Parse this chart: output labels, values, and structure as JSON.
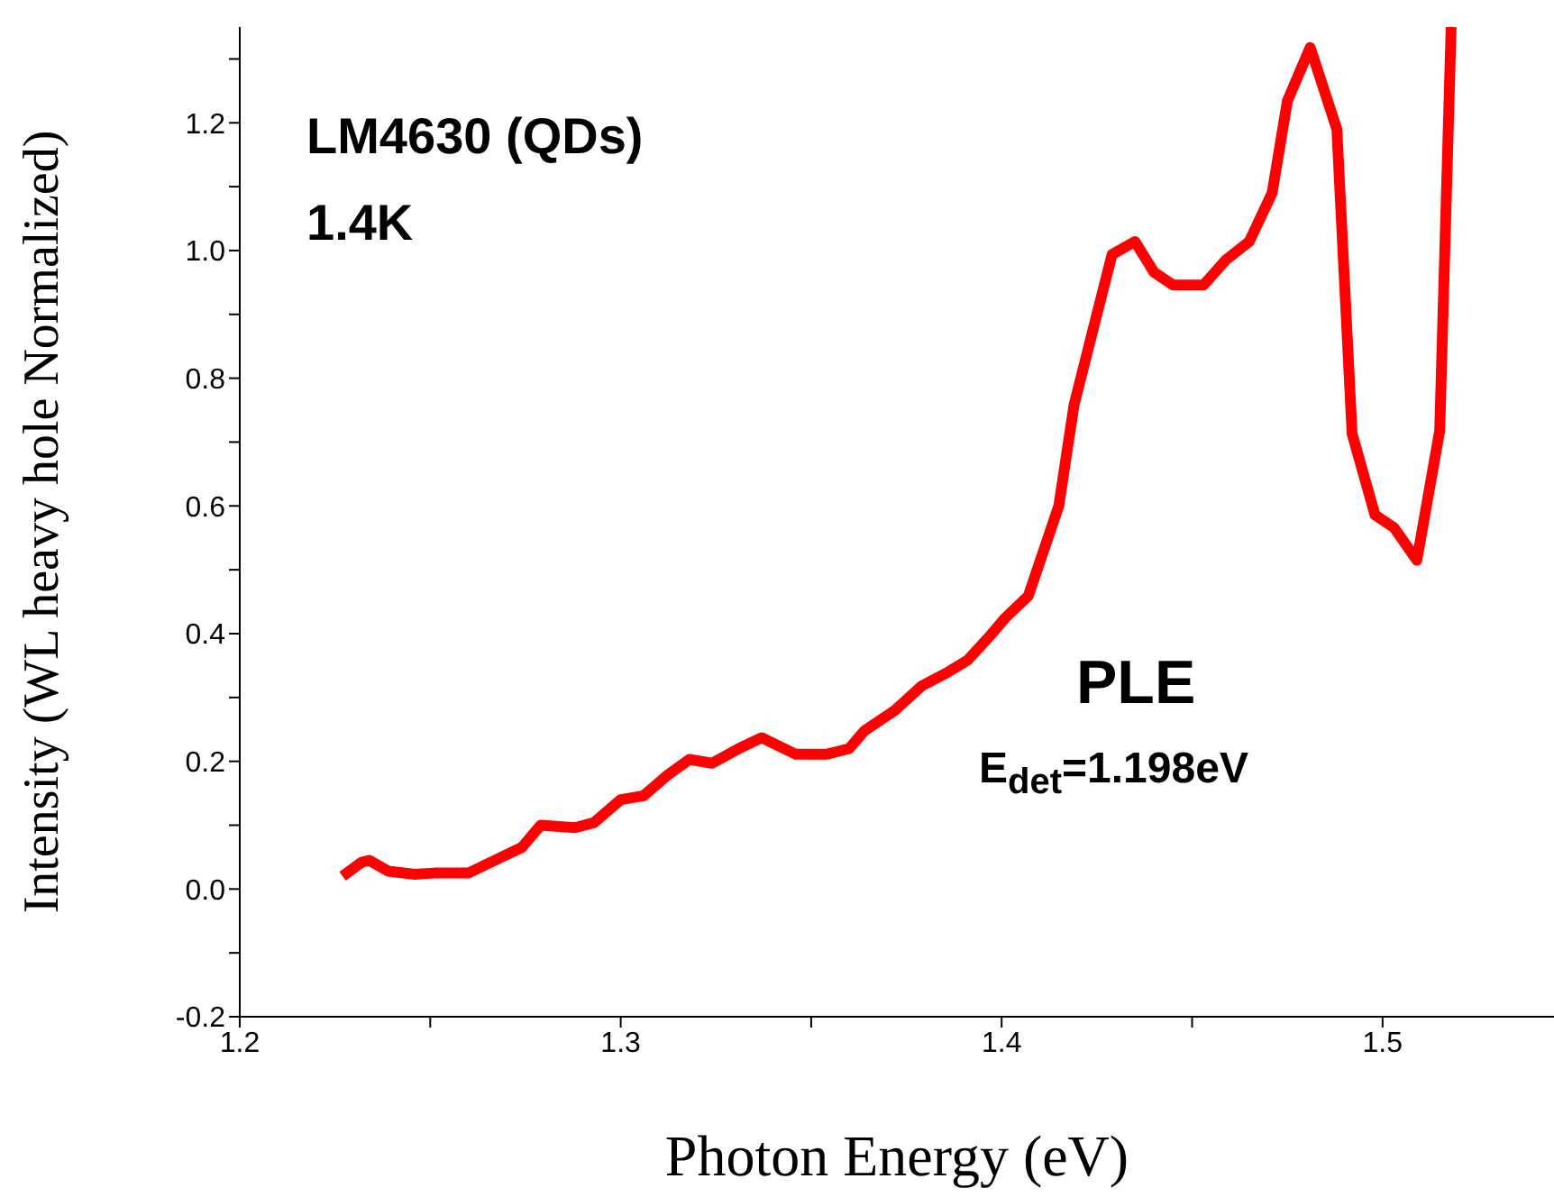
{
  "chart_data": {
    "type": "line",
    "xlabel": "Photon Energy (eV)",
    "ylabel": "Intensity (WL heavy hole Normalized)",
    "annotations": [
      "LM4630 (QDs)",
      "1.4K",
      "PLE",
      "E$_{det}$=1.198eV"
    ],
    "xlim": [
      1.2,
      1.545
    ],
    "xticks": [
      1.2,
      {
        "value": 1.25,
        "label": null
      },
      1.3,
      {
        "value": 1.35,
        "label": null
      },
      1.4,
      {
        "value": 1.45,
        "label": null
      },
      1.5
    ],
    "ylim": [
      -0.2,
      1.35
    ],
    "yticks": [
      -0.2,
      {
        "value": -0.1,
        "label": null
      },
      {
        "value": 0,
        "label": "0.0"
      },
      {
        "value": 0.1,
        "label": null
      },
      0.2,
      {
        "value": 0.3,
        "label": null
      },
      0.4,
      {
        "value": 0.5,
        "label": null
      },
      0.6,
      {
        "value": 0.7,
        "label": null
      },
      0.8,
      {
        "value": 0.9,
        "label": null
      },
      {
        "value": 1.0,
        "label": "1.0"
      },
      {
        "value": 1.1,
        "label": null
      },
      1.2,
      {
        "value": 1.3,
        "label": null
      }
    ],
    "grid": false,
    "legend": false,
    "series": [
      {
        "color": "#ff0000",
        "x": [
          1.227,
          1.232,
          1.234,
          1.239,
          1.246,
          1.251,
          1.26,
          1.267,
          1.274,
          1.279,
          1.288,
          1.293,
          1.3,
          1.306,
          1.312,
          1.318,
          1.324,
          1.331,
          1.337,
          1.346,
          1.354,
          1.36,
          1.364,
          1.372,
          1.379,
          1.386,
          1.391,
          1.397,
          1.401,
          1.407,
          1.415,
          1.419,
          1.425,
          1.429,
          1.435,
          1.44,
          1.445,
          1.453,
          1.459,
          1.465,
          1.471,
          1.475,
          1.481,
          1.488,
          1.492,
          1.498,
          1.503,
          1.509,
          1.515,
          1.518
        ],
        "values": [
          0.02,
          0.042,
          0.045,
          0.028,
          0.023,
          0.025,
          0.025,
          0.045,
          0.065,
          0.1,
          0.096,
          0.104,
          0.14,
          0.146,
          0.177,
          0.203,
          0.197,
          0.22,
          0.237,
          0.211,
          0.211,
          0.22,
          0.248,
          0.28,
          0.318,
          0.34,
          0.358,
          0.397,
          0.425,
          0.459,
          0.6,
          0.758,
          0.9,
          0.994,
          1.014,
          0.966,
          0.946,
          0.946,
          0.986,
          1.014,
          1.09,
          1.234,
          1.318,
          1.19,
          0.713,
          0.586,
          0.566,
          0.515,
          0.718,
          1.35
        ]
      }
    ]
  }
}
